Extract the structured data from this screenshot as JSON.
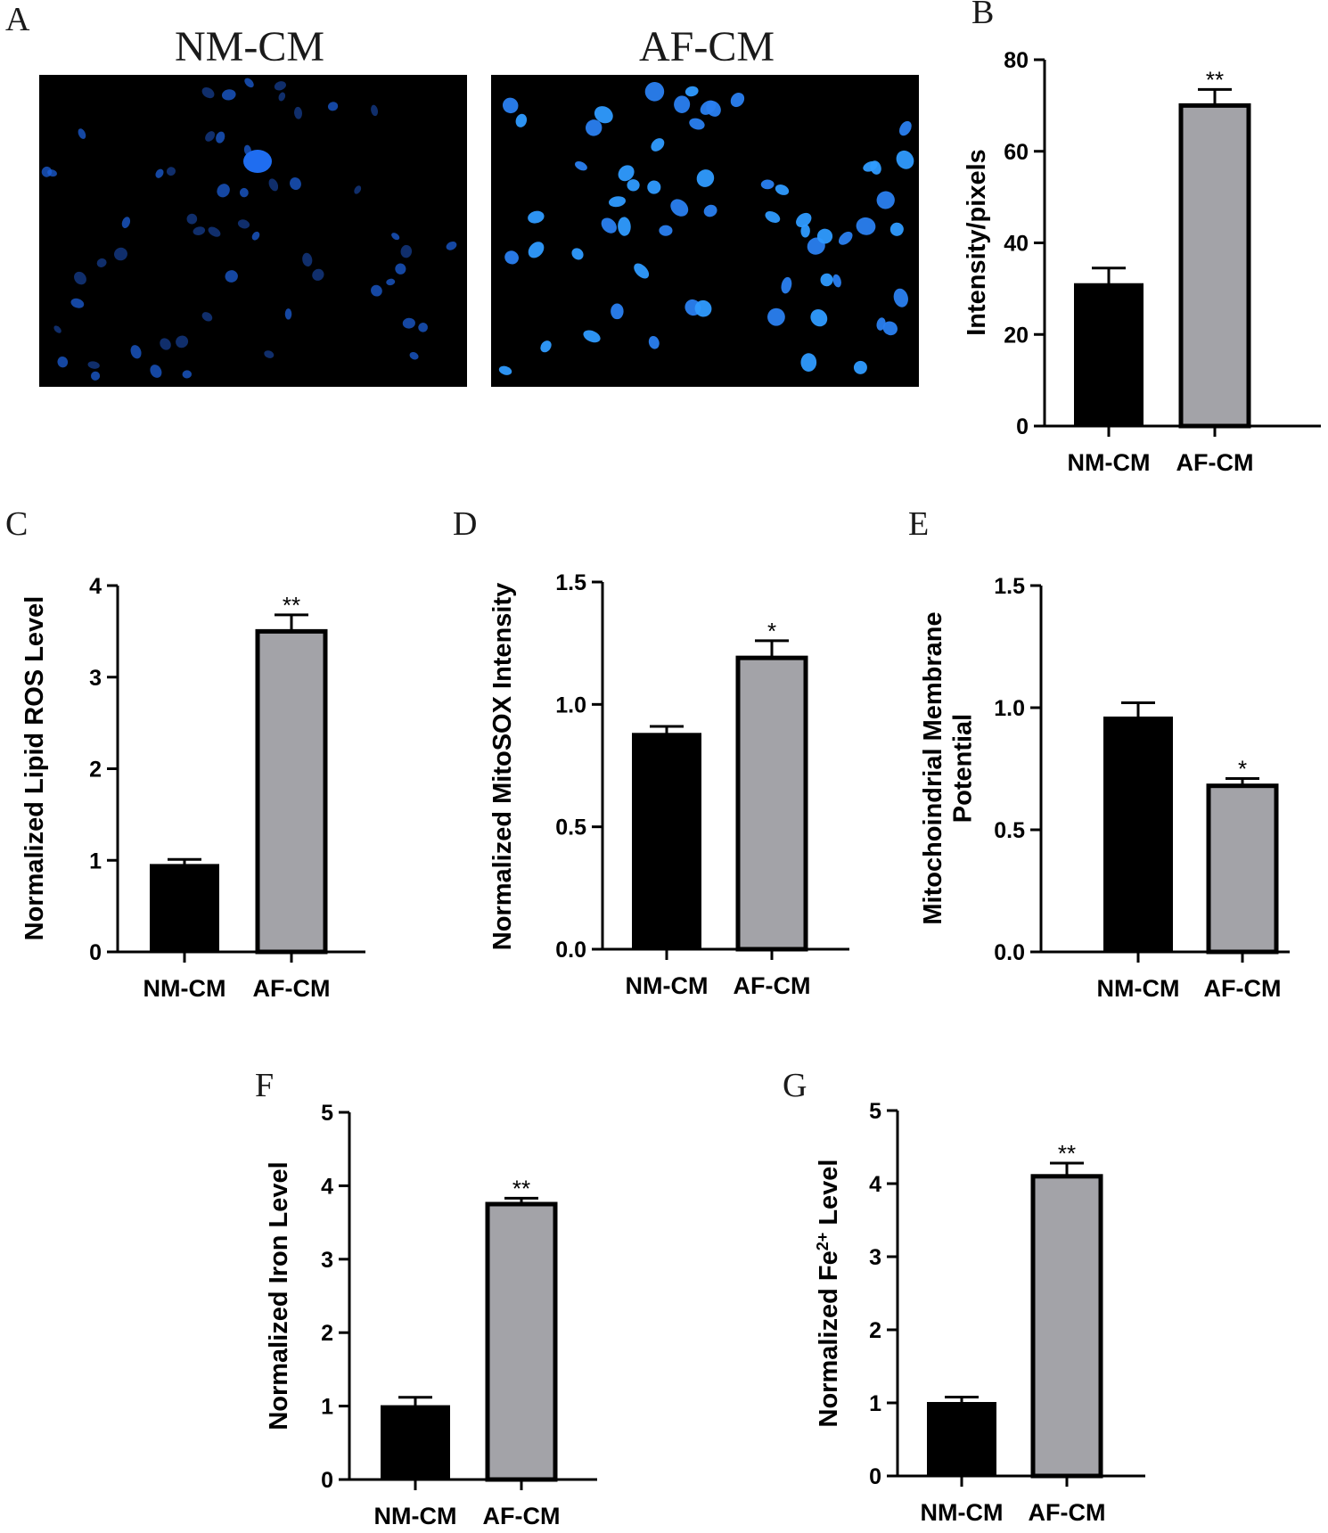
{
  "figure": {
    "panel_a": {
      "label": "A",
      "images": [
        {
          "title": "NM-CM",
          "description": "fluorescent-micrograph-sparse-dim-nuclei"
        },
        {
          "title": "AF-CM",
          "description": "fluorescent-micrograph-dense-bright-nuclei"
        }
      ]
    }
  },
  "colors": {
    "bar_nm": "#000000",
    "bar_af": "#a3a3a8",
    "micrograph_bg": "#000000",
    "nucleus_dim": "#1c5fd8",
    "nucleus_bright": "#2f9bff"
  },
  "chart_data": [
    {
      "id": "B",
      "label": "B",
      "type": "bar",
      "categories": [
        "NM-CM",
        "AF-CM"
      ],
      "values": [
        31,
        70
      ],
      "errors": [
        3.5,
        3.5
      ],
      "significance": [
        "",
        "**"
      ],
      "ylabel": "Intensity/pixels",
      "ylabel2": "",
      "ylim": [
        0,
        80
      ],
      "yticks": [
        "0",
        "20",
        "40",
        "60",
        "80"
      ],
      "tick_step": 20
    },
    {
      "id": "C",
      "label": "C",
      "type": "bar",
      "categories": [
        "NM-CM",
        "AF-CM"
      ],
      "values": [
        0.95,
        3.5
      ],
      "errors": [
        0.06,
        0.18
      ],
      "significance": [
        "",
        "**"
      ],
      "ylabel": "Normalized Lipid ROS Level",
      "ylabel2": "",
      "ylim": [
        0,
        4
      ],
      "yticks": [
        "0",
        "1",
        "2",
        "3",
        "4"
      ],
      "tick_step": 1
    },
    {
      "id": "D",
      "label": "D",
      "type": "bar",
      "categories": [
        "NM-CM",
        "AF-CM"
      ],
      "values": [
        0.88,
        1.19
      ],
      "errors": [
        0.03,
        0.07
      ],
      "significance": [
        "",
        "*"
      ],
      "ylabel": "Normalized MitoSOX Intensity",
      "ylabel2": "",
      "ylim": [
        0,
        1.5
      ],
      "yticks": [
        "0.0",
        "0.5",
        "1.0",
        "1.5"
      ],
      "tick_step": 0.5
    },
    {
      "id": "E",
      "label": "E",
      "type": "bar",
      "categories": [
        "NM-CM",
        "AF-CM"
      ],
      "values": [
        0.96,
        0.68
      ],
      "errors": [
        0.06,
        0.03
      ],
      "significance": [
        "",
        "*"
      ],
      "ylabel": "Mitochoindrial Membrane",
      "ylabel2": "Potential",
      "ylim": [
        0,
        1.5
      ],
      "yticks": [
        "0.0",
        "0.5",
        "1.0",
        "1.5"
      ],
      "tick_step": 0.5
    },
    {
      "id": "F",
      "label": "F",
      "type": "bar",
      "categories": [
        "NM-CM",
        "AF-CM"
      ],
      "values": [
        1.0,
        3.75
      ],
      "errors": [
        0.12,
        0.08
      ],
      "significance": [
        "",
        "**"
      ],
      "ylabel": "Normalized Iron Level",
      "ylabel2": "",
      "ylim": [
        0,
        5
      ],
      "yticks": [
        "0",
        "1",
        "2",
        "3",
        "4",
        "5"
      ],
      "tick_step": 1
    },
    {
      "id": "G",
      "label": "G",
      "type": "bar",
      "categories": [
        "NM-CM",
        "AF-CM"
      ],
      "values": [
        1.0,
        4.1
      ],
      "errors": [
        0.08,
        0.18
      ],
      "significance": [
        "",
        "**"
      ],
      "ylabel": "Normalized Fe",
      "ylabel_sup": "2+",
      "ylabel_tail": " Level",
      "ylabel2": "",
      "ylim": [
        0,
        5
      ],
      "yticks": [
        "0",
        "1",
        "2",
        "3",
        "4",
        "5"
      ],
      "tick_step": 1
    }
  ]
}
